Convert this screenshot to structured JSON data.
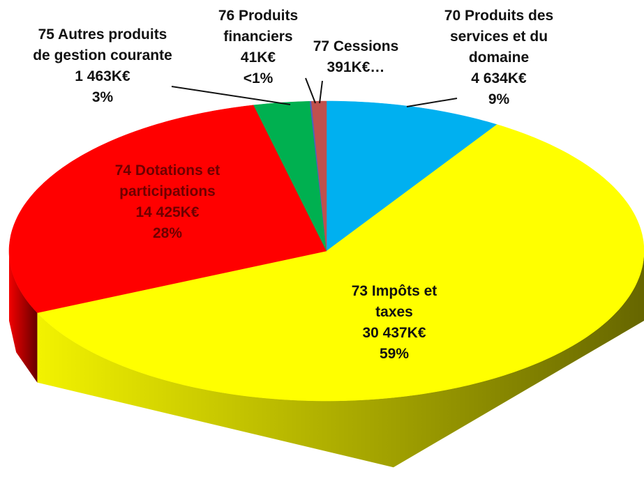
{
  "chart_data": {
    "type": "pie3d",
    "categories": [
      "70 Produits des services et du domaine",
      "73 Impôts et taxes",
      "74 Dotations et participations",
      "75 Autres produits de gestion courante",
      "76 Produits financiers",
      "77 Cessions"
    ],
    "values": [
      4634,
      30437,
      14425,
      1463,
      41,
      391
    ],
    "value_labels": [
      "4 634K€",
      "30 437K€",
      "14 425K€",
      "1 463K€",
      "41K€",
      "391K€…"
    ],
    "percent_labels": [
      "9%",
      "59%",
      "28%",
      "3%",
      "<1%",
      null
    ],
    "colors": [
      "#00b0f0",
      "#ffff00",
      "#ff0000",
      "#00b050",
      "#4f5fbf",
      "#c0504d"
    ]
  }
}
